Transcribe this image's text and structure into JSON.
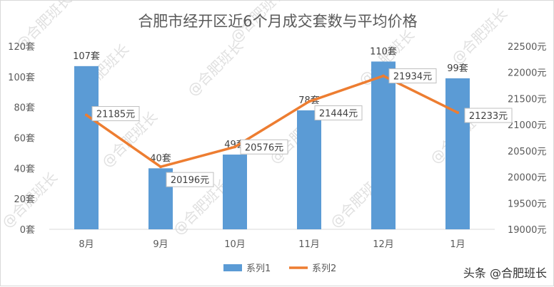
{
  "chart_data": {
    "type": "bar",
    "title": "合肥市经开区近6个月成交套数与平均价格",
    "categories": [
      "8月",
      "9月",
      "10月",
      "11月",
      "12月",
      "1月"
    ],
    "series": [
      {
        "name": "系列1",
        "type": "bar",
        "axis": "left",
        "values": [
          107,
          40,
          49,
          78,
          110,
          99
        ],
        "labels": [
          "107套",
          "40套",
          "49套",
          "78套",
          "110套",
          "99套"
        ],
        "color": "#5b9bd5"
      },
      {
        "name": "系列2",
        "type": "line",
        "axis": "right",
        "values": [
          21185,
          20196,
          20576,
          21444,
          21934,
          21233
        ],
        "labels": [
          "21185元",
          "20196元",
          "20576元",
          "21444元",
          "21934元",
          "21233元"
        ],
        "color": "#ed7d31"
      }
    ],
    "y_left": {
      "lim": [
        0,
        120
      ],
      "ticks": [
        0,
        20,
        40,
        60,
        80,
        100,
        120
      ],
      "tick_labels": [
        "0套",
        "20套",
        "40套",
        "60套",
        "80套",
        "100套",
        "120套"
      ]
    },
    "y_right": {
      "lim": [
        19000,
        22500
      ],
      "ticks": [
        19000,
        19500,
        20000,
        20500,
        21000,
        21500,
        22000,
        22500
      ],
      "tick_labels": [
        "19000元",
        "19500元",
        "20000元",
        "20500元",
        "21000元",
        "21500元",
        "22000元",
        "22500元"
      ]
    },
    "grid": false,
    "legend": "bottom"
  },
  "watermark": "@合肥班长",
  "corner_text": "头条 @合肥班长"
}
